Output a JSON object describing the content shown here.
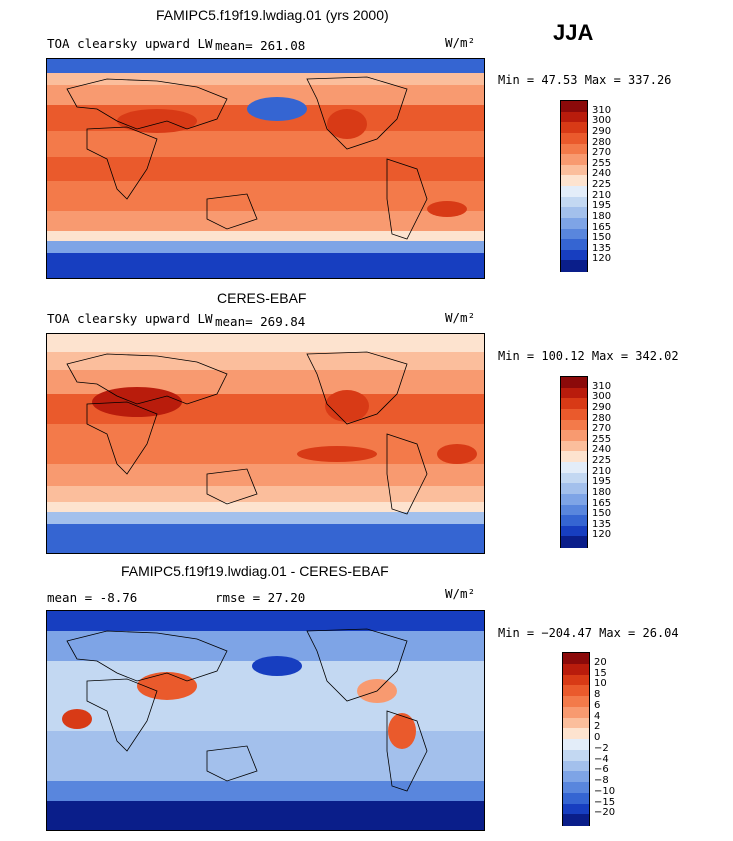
{
  "season": "JJA",
  "panels": [
    {
      "title": "FAMIPC5.f19f19.lwdiag.01 (yrs 2000)",
      "left_label": "TOA clearsky upward LW",
      "mean_label": "mean= 261.08",
      "units": "W/m²",
      "range": "Min =  47.53 Max = 337.26"
    },
    {
      "title": "CERES-EBAF",
      "left_label": "TOA clearsky upward LW",
      "mean_label": "mean= 269.84",
      "units": "W/m²",
      "range": "Min = 100.12 Max = 342.02"
    },
    {
      "title": "FAMIPC5.f19f19.lwdiag.01 - CERES-EBAF",
      "left_label": "mean =  -8.76",
      "mean_label": "rmse =  27.20",
      "units": "W/m²",
      "range": "Min = −204.47 Max =  26.04"
    }
  ],
  "colorbars": {
    "absolute": {
      "labels": [
        "310",
        "300",
        "290",
        "280",
        "270",
        "255",
        "240",
        "225",
        "210",
        "195",
        "180",
        "165",
        "150",
        "135",
        "120"
      ],
      "colors": [
        "#8b0a0a",
        "#b91c0c",
        "#d83a16",
        "#ea5a2c",
        "#f37a4a",
        "#f89a70",
        "#fbbe9c",
        "#fde3cf",
        "#e3edf9",
        "#c3d8f2",
        "#a3c0ec",
        "#7ea4e6",
        "#5986dd",
        "#3565d2",
        "#173ec0",
        "#0a1e8a"
      ]
    },
    "difference": {
      "labels": [
        "20",
        "15",
        "10",
        "8",
        "6",
        "4",
        "2",
        "0",
        "−2",
        "−4",
        "−6",
        "−8",
        "−10",
        "−15",
        "−20"
      ],
      "colors": [
        "#8b0a0a",
        "#b91c0c",
        "#d83a16",
        "#ea5a2c",
        "#f37a4a",
        "#f89a70",
        "#fbbe9c",
        "#fde3cf",
        "#e3edf9",
        "#c3d8f2",
        "#a3c0ec",
        "#7ea4e6",
        "#5986dd",
        "#3565d2",
        "#173ec0",
        "#0a1e8a"
      ]
    }
  }
}
